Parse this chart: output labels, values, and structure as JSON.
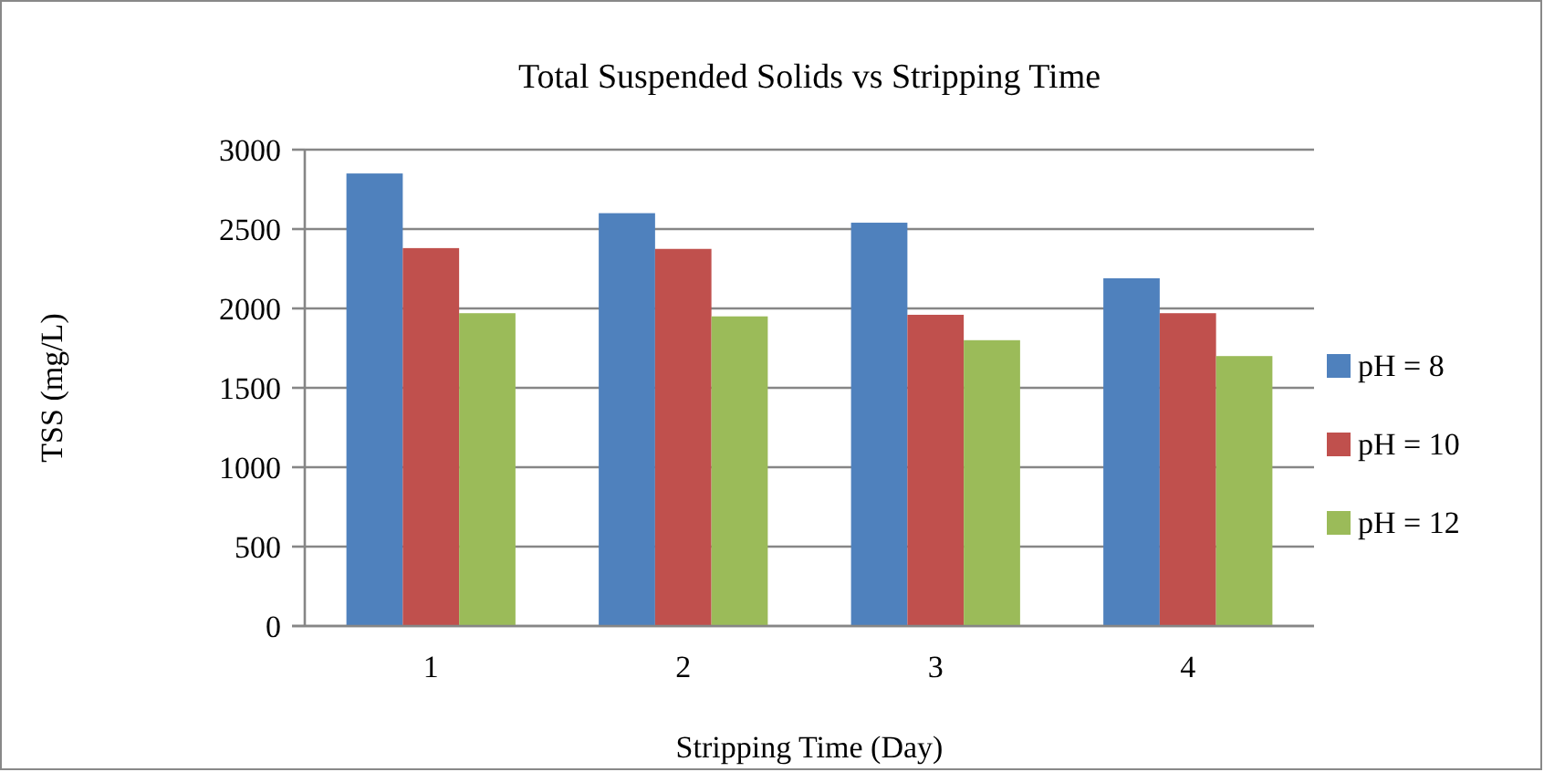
{
  "chart_data": {
    "type": "bar",
    "title": "Total Suspended Solids vs Stripping Time",
    "xlabel": "Stripping Time (Day)",
    "ylabel": "TSS (mg/L)",
    "categories": [
      "1",
      "2",
      "3",
      "4"
    ],
    "series": [
      {
        "name": "pH = 8",
        "color": "#4f81bd",
        "values": [
          2850,
          2600,
          2540,
          2190
        ]
      },
      {
        "name": "pH = 10",
        "color": "#c0504d",
        "values": [
          2380,
          2375,
          1960,
          1970
        ]
      },
      {
        "name": "pH = 12",
        "color": "#9bbb59",
        "values": [
          1970,
          1950,
          1800,
          1700
        ]
      }
    ],
    "ylim": [
      0,
      3000
    ],
    "yticks": [
      0,
      500,
      1000,
      1500,
      2000,
      2500,
      3000
    ],
    "grid": "y",
    "legend": "right"
  }
}
